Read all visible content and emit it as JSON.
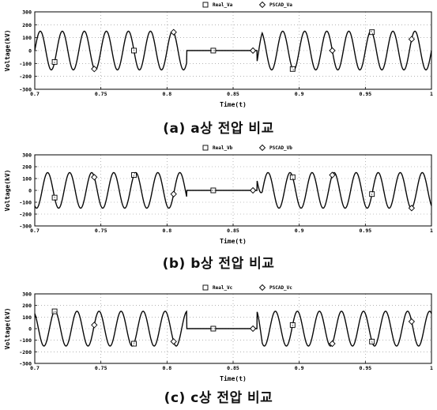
{
  "charts": [
    {
      "caption": "(a) a상 전압 비교",
      "chart_data": {
        "type": "line",
        "xlabel": "Time(t)",
        "ylabel": "Voltage(kV)",
        "xlim": [
          0.7,
          1.0
        ],
        "ylim": [
          -300,
          300
        ],
        "xticks": [
          "0.7",
          "0.75",
          "0.8",
          "0.85",
          "0.9",
          "0.95",
          "1"
        ],
        "yticks": [
          "300",
          "200",
          "100",
          "0",
          "-100",
          "-200",
          "-300"
        ],
        "legend": [
          "Real_Va",
          "PSCAD_Va"
        ],
        "legend_position": "top-center",
        "series": [
          {
            "name": "Real_Va",
            "marker": "square",
            "amplitude": 150,
            "frequency": 60,
            "phase_deg": 0,
            "markers_x": [
              0.715,
              0.775,
              0.835,
              0.895,
              0.955
            ]
          },
          {
            "name": "PSCAD_Va",
            "marker": "diamond",
            "amplitude": 150,
            "frequency": 60,
            "phase_deg": 0,
            "markers_x": [
              0.745,
              0.805,
              0.865,
              0.925,
              0.985
            ]
          }
        ],
        "fault": {
          "start": 0.815,
          "end": 0.868,
          "value": 0,
          "transient_peak": -200
        }
      }
    },
    {
      "caption": "(b) b상 전압 비교",
      "chart_data": {
        "type": "line",
        "xlabel": "Time(t)",
        "ylabel": "Voltage(kV)",
        "xlim": [
          0.7,
          1.0
        ],
        "ylim": [
          -300,
          300
        ],
        "xticks": [
          "0.7",
          "0.75",
          "0.8",
          "0.85",
          "0.9",
          "0.95",
          "1"
        ],
        "yticks": [
          "300",
          "200",
          "100",
          "0",
          "-100",
          "-200",
          "-300"
        ],
        "legend": [
          "Real_Vb",
          "PSCAD_Vb"
        ],
        "legend_position": "top-center",
        "series": [
          {
            "name": "Real_Vb",
            "marker": "square",
            "amplitude": 150,
            "frequency": 60,
            "phase_deg": -120,
            "markers_x": [
              0.715,
              0.775,
              0.835,
              0.895,
              0.955
            ]
          },
          {
            "name": "PSCAD_Vb",
            "marker": "diamond",
            "amplitude": 150,
            "frequency": 60,
            "phase_deg": -120,
            "markers_x": [
              0.745,
              0.805,
              0.865,
              0.925,
              0.985
            ]
          }
        ],
        "fault": {
          "start": 0.815,
          "end": 0.868,
          "value": 0,
          "transient_peak": 250
        }
      }
    },
    {
      "caption": "(c) c상 전압 비교",
      "chart_data": {
        "type": "line",
        "xlabel": "Time(t)",
        "ylabel": "Voltage(kV)",
        "xlim": [
          0.7,
          1.0
        ],
        "ylim": [
          -300,
          300
        ],
        "xticks": [
          "0.7",
          "0.75",
          "0.8",
          "0.85",
          "0.9",
          "0.95",
          "1"
        ],
        "yticks": [
          "300",
          "200",
          "100",
          "0",
          "-100",
          "-200",
          "-300"
        ],
        "legend": [
          "Real_Vc",
          "PSCAD_Vc"
        ],
        "legend_position": "top-center",
        "series": [
          {
            "name": "Real_Vc",
            "marker": "square",
            "amplitude": 150,
            "frequency": 60,
            "phase_deg": 120,
            "markers_x": [
              0.715,
              0.775,
              0.835,
              0.895,
              0.955
            ]
          },
          {
            "name": "PSCAD_Vc",
            "marker": "diamond",
            "amplitude": 150,
            "frequency": 60,
            "phase_deg": 120,
            "markers_x": [
              0.745,
              0.805,
              0.865,
              0.925,
              0.985
            ]
          }
        ],
        "fault": {
          "start": 0.815,
          "end": 0.868,
          "value": 0,
          "transient_peak": 200
        }
      }
    }
  ]
}
